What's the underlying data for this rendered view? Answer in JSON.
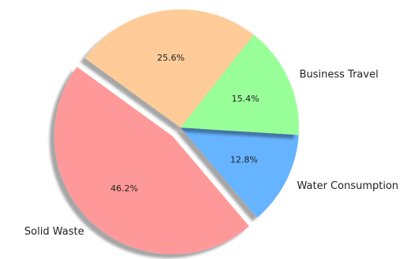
{
  "chart_data": {
    "type": "pie",
    "categories": [
      "Solid Waste",
      "Water Consumption",
      "Business Travel",
      ""
    ],
    "values": [
      46.2,
      12.8,
      15.4,
      25.6
    ],
    "value_labels": [
      "46.2%",
      "12.8%",
      "15.4%",
      "25.6%"
    ],
    "colors": [
      "#ff9999",
      "#66b3ff",
      "#99ff99",
      "#ffcc99"
    ],
    "exploded": [
      true,
      false,
      false,
      false
    ],
    "shadow": true,
    "title": "",
    "legend": "none"
  }
}
